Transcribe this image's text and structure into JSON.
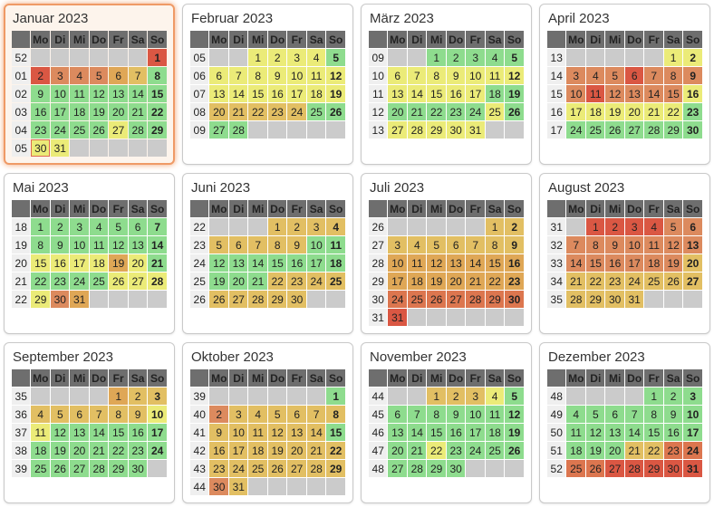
{
  "weekday_headers": [
    "Mo",
    "Di",
    "Mi",
    "Do",
    "Fr",
    "Sa",
    "So"
  ],
  "palette": {
    "green": "#8edc8e",
    "yellow": "#ebeb78",
    "tan": "#e2bf63",
    "dark_gold": "#dfa756",
    "orange": "#dc8a5e",
    "salmon": "#dc764f",
    "red": "#da5743",
    "empty_cell": "#cbcbcb",
    "header_bg": "#6e6e6e",
    "header_fg": "#ffffff",
    "weeknum_bg": "#efefef",
    "weeknum_fg": "#9b9b9b",
    "holiday_text": "#e8380d",
    "today_border": "#dd6a52",
    "highlight_border": "#ef9a66",
    "highlight_glow": "#f2a473"
  },
  "legend_note_color_codes": "G=green Y=yellow T=tan D=dark-gold O=orange S=salmon R=red; cell format day:color[:h holiday-red-text][:t today]",
  "months": [
    {
      "title": "Januar 2023",
      "highlight": true,
      "weeks": [
        {
          "num": "52",
          "cells": [
            "",
            "",
            "",
            "",
            "",
            "",
            "1:R:h"
          ]
        },
        {
          "num": "01",
          "cells": [
            "2:R",
            "3:O",
            "4:O",
            "5:O",
            "6:D:h",
            "7:T",
            "8:G"
          ]
        },
        {
          "num": "02",
          "cells": [
            "9:G",
            "10:G",
            "11:G",
            "12:G",
            "13:G",
            "14:G",
            "15:G"
          ]
        },
        {
          "num": "03",
          "cells": [
            "16:G",
            "17:G",
            "18:G",
            "19:G",
            "20:G",
            "21:G",
            "22:G"
          ]
        },
        {
          "num": "04",
          "cells": [
            "23:G",
            "24:G",
            "25:G",
            "26:G",
            "27:Y",
            "28:G",
            "29:G"
          ]
        },
        {
          "num": "05",
          "cells": [
            "30:Y:t",
            "31:Y",
            "",
            "",
            "",
            "",
            ""
          ]
        }
      ]
    },
    {
      "title": "Februar 2023",
      "highlight": false,
      "weeks": [
        {
          "num": "05",
          "cells": [
            "",
            "",
            "1:Y",
            "2:Y",
            "3:Y",
            "4:Y",
            "5:G"
          ]
        },
        {
          "num": "06",
          "cells": [
            "6:Y",
            "7:Y",
            "8:Y",
            "9:Y",
            "10:Y",
            "11:Y",
            "12:Y"
          ]
        },
        {
          "num": "07",
          "cells": [
            "13:Y",
            "14:Y",
            "15:Y",
            "16:Y",
            "17:Y",
            "18:Y",
            "19:Y"
          ]
        },
        {
          "num": "08",
          "cells": [
            "20:T",
            "21:T",
            "22:T",
            "23:T",
            "24:T",
            "25:G",
            "26:G"
          ]
        },
        {
          "num": "09",
          "cells": [
            "27:G",
            "28:G",
            "",
            "",
            "",
            "",
            ""
          ]
        }
      ]
    },
    {
      "title": "März 2023",
      "highlight": false,
      "weeks": [
        {
          "num": "09",
          "cells": [
            "",
            "",
            "1:G",
            "2:G",
            "3:G",
            "4:G",
            "5:G"
          ]
        },
        {
          "num": "10",
          "cells": [
            "6:Y",
            "7:Y",
            "8:Y:h",
            "9:Y",
            "10:Y",
            "11:Y",
            "12:Y"
          ]
        },
        {
          "num": "11",
          "cells": [
            "13:Y",
            "14:Y",
            "15:Y",
            "16:Y",
            "17:Y",
            "18:G",
            "19:G"
          ]
        },
        {
          "num": "12",
          "cells": [
            "20:G",
            "21:G",
            "22:G",
            "23:G",
            "24:G",
            "25:Y",
            "26:G"
          ]
        },
        {
          "num": "13",
          "cells": [
            "27:Y",
            "28:Y",
            "29:Y",
            "30:Y",
            "31:Y",
            "",
            ""
          ]
        }
      ]
    },
    {
      "title": "April 2023",
      "highlight": false,
      "weeks": [
        {
          "num": "13",
          "cells": [
            "",
            "",
            "",
            "",
            "",
            "1:Y",
            "2:Y"
          ]
        },
        {
          "num": "14",
          "cells": [
            "3:O",
            "4:O",
            "5:O",
            "6:R",
            "7:O:h",
            "8:O",
            "9:O:h"
          ]
        },
        {
          "num": "15",
          "cells": [
            "10:O:h",
            "11:R",
            "12:O",
            "13:O",
            "14:O",
            "15:O",
            "16:Y"
          ]
        },
        {
          "num": "16",
          "cells": [
            "17:Y",
            "18:Y",
            "19:Y",
            "20:Y",
            "21:Y",
            "22:Y",
            "23:G"
          ]
        },
        {
          "num": "17",
          "cells": [
            "24:G",
            "25:G",
            "26:G",
            "27:G",
            "28:G",
            "29:G",
            "30:G"
          ]
        }
      ]
    },
    {
      "title": "Mai 2023",
      "highlight": false,
      "weeks": [
        {
          "num": "18",
          "cells": [
            "1:G:h",
            "2:G",
            "3:G",
            "4:G",
            "5:G",
            "6:G",
            "7:G"
          ]
        },
        {
          "num": "19",
          "cells": [
            "8:G",
            "9:G",
            "10:G",
            "11:G",
            "12:G",
            "13:G",
            "14:G"
          ]
        },
        {
          "num": "20",
          "cells": [
            "15:Y",
            "16:Y",
            "17:Y",
            "18:Y:h",
            "19:D",
            "20:Y",
            "21:G"
          ]
        },
        {
          "num": "21",
          "cells": [
            "22:G",
            "23:G",
            "24:G",
            "25:G",
            "26:Y",
            "27:Y",
            "28:Y:h"
          ]
        },
        {
          "num": "22",
          "cells": [
            "29:Y:h",
            "30:O",
            "31:D",
            "",
            "",
            "",
            ""
          ]
        }
      ]
    },
    {
      "title": "Juni 2023",
      "highlight": false,
      "weeks": [
        {
          "num": "22",
          "cells": [
            "",
            "",
            "",
            "1:T",
            "2:T",
            "3:T",
            "4:T"
          ]
        },
        {
          "num": "23",
          "cells": [
            "5:T",
            "6:T",
            "7:T",
            "8:T:h",
            "9:T",
            "10:G",
            "11:G"
          ]
        },
        {
          "num": "24",
          "cells": [
            "12:G",
            "13:G",
            "14:G",
            "15:G",
            "16:G",
            "17:G",
            "18:G"
          ]
        },
        {
          "num": "25",
          "cells": [
            "19:G",
            "20:G",
            "21:G",
            "22:T",
            "23:T",
            "24:T",
            "25:T"
          ]
        },
        {
          "num": "26",
          "cells": [
            "26:T",
            "27:T",
            "28:T",
            "29:T",
            "30:T",
            "",
            ""
          ]
        }
      ]
    },
    {
      "title": "Juli 2023",
      "highlight": false,
      "weeks": [
        {
          "num": "26",
          "cells": [
            "",
            "",
            "",
            "",
            "",
            "1:T",
            "2:T"
          ]
        },
        {
          "num": "27",
          "cells": [
            "3:T",
            "4:T",
            "5:T",
            "6:T",
            "7:T",
            "8:T",
            "9:T"
          ]
        },
        {
          "num": "28",
          "cells": [
            "10:D",
            "11:D",
            "12:D",
            "13:D",
            "14:D",
            "15:D",
            "16:D"
          ]
        },
        {
          "num": "29",
          "cells": [
            "17:D",
            "18:D",
            "19:D",
            "20:D",
            "21:D",
            "22:D",
            "23:D"
          ]
        },
        {
          "num": "30",
          "cells": [
            "24:S",
            "25:S",
            "26:S",
            "27:S",
            "28:S",
            "29:S",
            "30:S"
          ]
        },
        {
          "num": "31",
          "cells": [
            "31:R",
            "",
            "",
            "",
            "",
            "",
            ""
          ]
        }
      ]
    },
    {
      "title": "August 2023",
      "highlight": false,
      "weeks": [
        {
          "num": "31",
          "cells": [
            "",
            "1:R",
            "2:R",
            "3:R",
            "4:R",
            "5:O",
            "6:O"
          ]
        },
        {
          "num": "32",
          "cells": [
            "7:O",
            "8:O",
            "9:O",
            "10:O",
            "11:O",
            "12:O",
            "13:O"
          ]
        },
        {
          "num": "33",
          "cells": [
            "14:O",
            "15:O:h",
            "16:O",
            "17:O",
            "18:O",
            "19:O",
            "20:T"
          ]
        },
        {
          "num": "34",
          "cells": [
            "21:T",
            "22:T",
            "23:T",
            "24:T",
            "25:T",
            "26:T",
            "27:T"
          ]
        },
        {
          "num": "35",
          "cells": [
            "28:T",
            "29:T",
            "30:T",
            "31:T",
            "",
            "",
            ""
          ]
        }
      ]
    },
    {
      "title": "September 2023",
      "highlight": false,
      "weeks": [
        {
          "num": "35",
          "cells": [
            "",
            "",
            "",
            "",
            "1:D",
            "2:T",
            "3:T"
          ]
        },
        {
          "num": "36",
          "cells": [
            "4:T",
            "5:T",
            "6:T",
            "7:T",
            "8:T",
            "9:T",
            "10:Y"
          ]
        },
        {
          "num": "37",
          "cells": [
            "11:Y",
            "12:G",
            "13:G",
            "14:G",
            "15:G",
            "16:G",
            "17:G"
          ]
        },
        {
          "num": "38",
          "cells": [
            "18:G",
            "19:G",
            "20:G:h",
            "21:G",
            "22:G",
            "23:G",
            "24:G"
          ]
        },
        {
          "num": "39",
          "cells": [
            "25:G",
            "26:G",
            "27:G",
            "28:G",
            "29:G",
            "30:G",
            ""
          ]
        }
      ]
    },
    {
      "title": "Oktober 2023",
      "highlight": false,
      "weeks": [
        {
          "num": "39",
          "cells": [
            "",
            "",
            "",
            "",
            "",
            "",
            "1:G"
          ]
        },
        {
          "num": "40",
          "cells": [
            "2:O",
            "3:T:h",
            "4:T",
            "5:T",
            "6:T",
            "7:T",
            "8:T"
          ]
        },
        {
          "num": "41",
          "cells": [
            "9:T",
            "10:T",
            "11:T",
            "12:T",
            "13:T",
            "14:T",
            "15:G"
          ]
        },
        {
          "num": "42",
          "cells": [
            "16:T",
            "17:T",
            "18:T",
            "19:T",
            "20:T",
            "21:T",
            "22:T"
          ]
        },
        {
          "num": "43",
          "cells": [
            "23:T",
            "24:T",
            "25:T",
            "26:T",
            "27:T",
            "28:T",
            "29:T"
          ]
        },
        {
          "num": "44",
          "cells": [
            "30:O",
            "31:T:h",
            "",
            "",
            "",
            "",
            ""
          ]
        }
      ]
    },
    {
      "title": "November 2023",
      "highlight": false,
      "weeks": [
        {
          "num": "44",
          "cells": [
            "",
            "",
            "1:T:h",
            "2:T",
            "3:T",
            "4:Y",
            "5:G"
          ]
        },
        {
          "num": "45",
          "cells": [
            "6:G",
            "7:G",
            "8:G",
            "9:G",
            "10:G",
            "11:G",
            "12:G"
          ]
        },
        {
          "num": "46",
          "cells": [
            "13:G",
            "14:G",
            "15:G",
            "16:G",
            "17:G",
            "18:G",
            "19:G"
          ]
        },
        {
          "num": "47",
          "cells": [
            "20:G",
            "21:G",
            "22:Y:h",
            "23:G",
            "24:G",
            "25:G",
            "26:G"
          ]
        },
        {
          "num": "48",
          "cells": [
            "27:G",
            "28:G",
            "29:G",
            "30:G",
            "",
            "",
            ""
          ]
        }
      ]
    },
    {
      "title": "Dezember 2023",
      "highlight": false,
      "weeks": [
        {
          "num": "48",
          "cells": [
            "",
            "",
            "",
            "",
            "1:G",
            "2:G",
            "3:G"
          ]
        },
        {
          "num": "49",
          "cells": [
            "4:G",
            "5:G",
            "6:G",
            "7:G",
            "8:G",
            "9:G",
            "10:G"
          ]
        },
        {
          "num": "50",
          "cells": [
            "11:G",
            "12:G",
            "13:G",
            "14:G",
            "15:G",
            "16:G",
            "17:G"
          ]
        },
        {
          "num": "51",
          "cells": [
            "18:G",
            "19:G",
            "20:G",
            "21:T",
            "22:T",
            "23:S",
            "24:S"
          ]
        },
        {
          "num": "52",
          "cells": [
            "25:S:h",
            "26:S:h",
            "27:R",
            "28:R",
            "29:R",
            "30:R",
            "31:R"
          ]
        }
      ]
    }
  ]
}
